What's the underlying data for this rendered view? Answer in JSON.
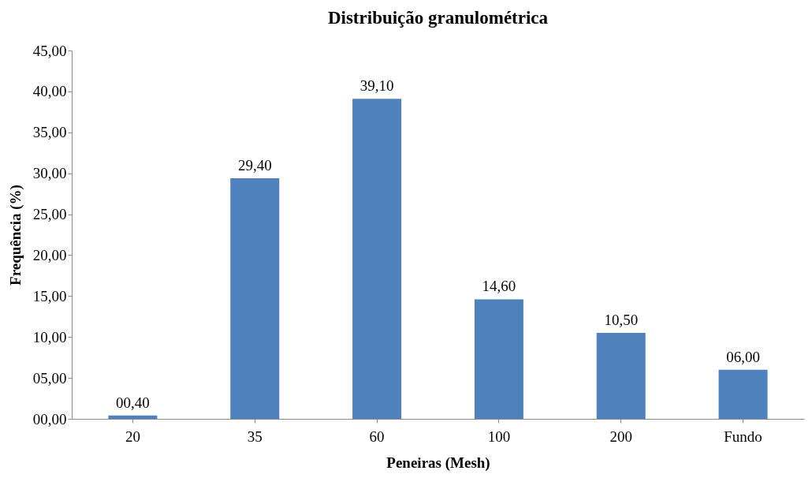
{
  "chart_data": {
    "type": "bar",
    "title": "Distribuição granulométrica",
    "xlabel": "Peneiras (Mesh)",
    "ylabel": "Frequência (%)",
    "categories": [
      "20",
      "35",
      "60",
      "100",
      "200",
      "Fundo"
    ],
    "values": [
      0.4,
      29.4,
      39.1,
      14.6,
      10.5,
      6.0
    ],
    "value_labels": [
      "00,40",
      "29,40",
      "39,10",
      "14,60",
      "10,50",
      "06,00"
    ],
    "color": "#4f81bd",
    "ylim": [
      0,
      45
    ],
    "yticks": [
      {
        "value": 0,
        "label": "00,00"
      },
      {
        "value": 5,
        "label": "05,00"
      },
      {
        "value": 10,
        "label": "10,00"
      },
      {
        "value": 15,
        "label": "15,00"
      },
      {
        "value": 20,
        "label": "20,00"
      },
      {
        "value": 25,
        "label": "25,00"
      },
      {
        "value": 30,
        "label": "30,00"
      },
      {
        "value": 35,
        "label": "35,00"
      },
      {
        "value": 40,
        "label": "40,00"
      },
      {
        "value": 45,
        "label": "45,00"
      }
    ],
    "grid": false
  }
}
